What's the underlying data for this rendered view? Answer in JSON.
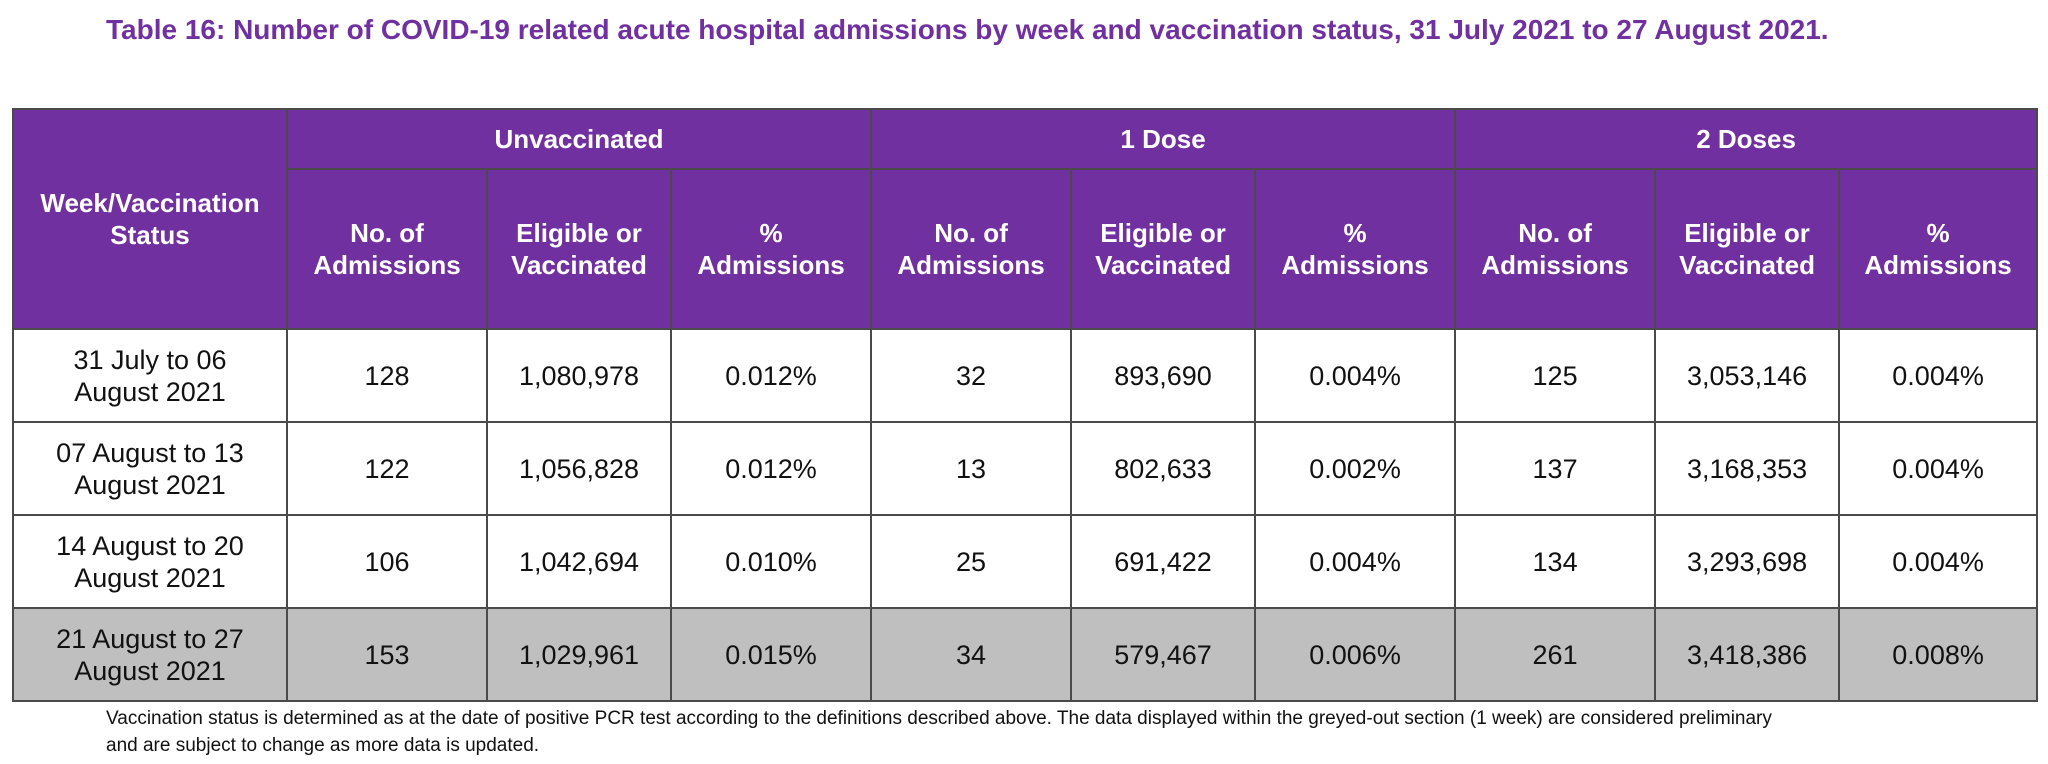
{
  "title": "Table 16: Number of COVID-19 related acute hospital admissions by week and vaccination status, 31 July 2021 to 27 August 2021.",
  "table": {
    "row_header_lines": [
      "Week/Vaccination",
      "Status"
    ],
    "groups": [
      {
        "label": "Unvaccinated"
      },
      {
        "label": "1 Dose"
      },
      {
        "label": "2 Doses"
      }
    ],
    "subheaders": [
      {
        "line1": "No. of",
        "line2": "Admissions"
      },
      {
        "line1": "Eligible or",
        "line2": "Vaccinated"
      },
      {
        "line1": "%",
        "line2": "Admissions"
      }
    ],
    "rows": [
      {
        "week_line1": "31 July to 06",
        "week_line2": "August 2021",
        "preliminary": false,
        "cells": [
          "128",
          "1,080,978",
          "0.012%",
          "32",
          "893,690",
          "0.004%",
          "125",
          "3,053,146",
          "0.004%"
        ]
      },
      {
        "week_line1": "07 August to 13",
        "week_line2": "August 2021",
        "preliminary": false,
        "cells": [
          "122",
          "1,056,828",
          "0.012%",
          "13",
          "802,633",
          "0.002%",
          "137",
          "3,168,353",
          "0.004%"
        ]
      },
      {
        "week_line1": "14 August to 20",
        "week_line2": "August 2021",
        "preliminary": false,
        "cells": [
          "106",
          "1,042,694",
          "0.010%",
          "25",
          "691,422",
          "0.004%",
          "134",
          "3,293,698",
          "0.004%"
        ]
      },
      {
        "week_line1": "21 August to 27",
        "week_line2": "August 2021",
        "preliminary": true,
        "cells": [
          "153",
          "1,029,961",
          "0.015%",
          "34",
          "579,467",
          "0.006%",
          "261",
          "3,418,386",
          "0.008%"
        ]
      }
    ]
  },
  "footnote": {
    "line1": "Vaccination status is determined as at the date of positive PCR test according to the definitions described above. The data displayed within the greyed-out section (1 week) are considered preliminary",
    "line2": "and are subject to change as more data is updated."
  },
  "colors": {
    "accent": "#7030a0",
    "header_text": "#ffffff",
    "preliminary_row_bg": "#bfbfbf"
  }
}
